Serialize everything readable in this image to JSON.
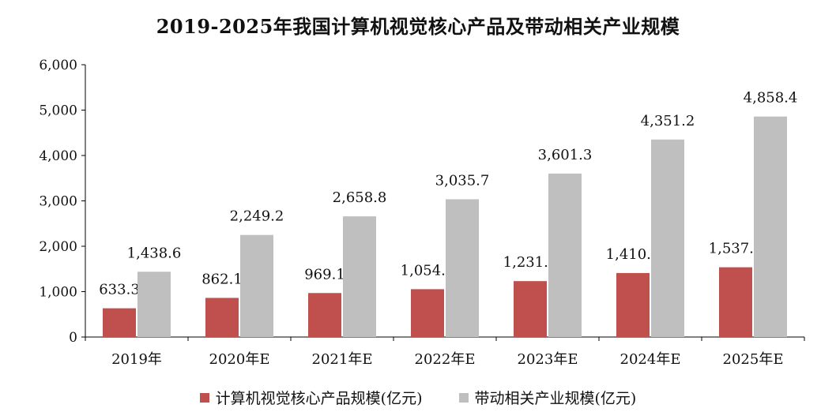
{
  "chart_data": {
    "type": "bar",
    "title": "2019-2025年我国计算机视觉核心产品及带动相关产业规模",
    "xlabel": "",
    "ylabel": "",
    "categories": [
      "2019年",
      "2020年E",
      "2021年E",
      "2022年E",
      "2023年E",
      "2024年E",
      "2025年E"
    ],
    "series": [
      {
        "name": "计算机视觉核心产品规模(亿元)",
        "color": "#c0504d",
        "values": [
          633.3,
          862.1,
          969.1,
          1054.1,
          1231.8,
          1410.2,
          1537.1
        ],
        "labels": [
          "633.3",
          "862.1",
          "969.1",
          "1,054.1",
          "1,231.8",
          "1,410.2",
          "1,537.1"
        ]
      },
      {
        "name": "带动相关产业规模(亿元)",
        "color": "#bfbfbf",
        "values": [
          1438.6,
          2249.2,
          2658.8,
          3035.7,
          3601.3,
          4351.2,
          4858.4
        ],
        "labels": [
          "1,438.6",
          "2,249.2",
          "2,658.8",
          "3,035.7",
          "3,601.3",
          "4,351.2",
          "4,858.4"
        ]
      }
    ],
    "ylim": [
      0,
      6000
    ],
    "yticks": [
      0,
      1000,
      2000,
      3000,
      4000,
      5000,
      6000
    ],
    "ytick_labels": [
      "0",
      "1,000",
      "2,000",
      "3,000",
      "4,000",
      "5,000",
      "6,000"
    ],
    "grid": false,
    "legend_position": "bottom"
  }
}
